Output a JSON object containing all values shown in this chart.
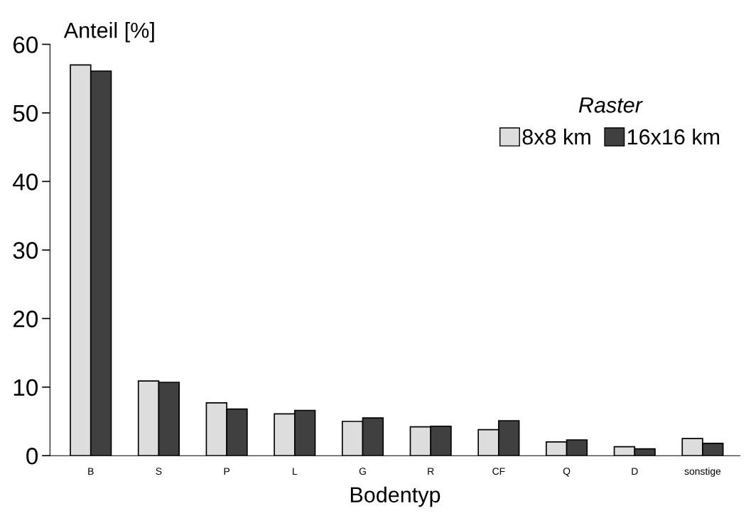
{
  "chart_data": {
    "type": "bar",
    "ylabel": "Anteil [%]",
    "xlabel": "Bodentyp",
    "legend_title": "Raster",
    "categories": [
      "B",
      "S",
      "P",
      "L",
      "G",
      "R",
      "CF",
      "Q",
      "D",
      "sonstige"
    ],
    "series": [
      {
        "name": "8x8 km",
        "color": "#dddddd",
        "values": [
          57.0,
          10.9,
          7.7,
          6.1,
          5.0,
          4.2,
          3.8,
          2.0,
          1.3,
          2.5
        ]
      },
      {
        "name": "16x16 km",
        "color": "#404040",
        "values": [
          56.1,
          10.7,
          6.8,
          6.6,
          5.5,
          4.3,
          5.1,
          2.3,
          1.0,
          1.8
        ]
      }
    ],
    "ylim": [
      0,
      60
    ],
    "yticks": [
      0,
      10,
      20,
      30,
      40,
      50,
      60
    ],
    "grid": false,
    "legend": "top right"
  }
}
